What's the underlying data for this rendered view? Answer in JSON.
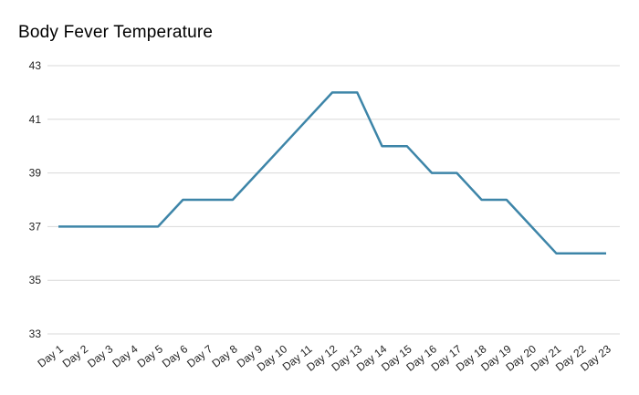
{
  "chart_data": {
    "type": "line",
    "title": "Body Fever Temperature",
    "categories": [
      "Day 1",
      "Day 2",
      "Day 3",
      "Day 4",
      "Day 5",
      "Day 6",
      "Day 7",
      "Day 8",
      "Day 9",
      "Day 10",
      "Day 11",
      "Day 12",
      "Day 13",
      "Day 14",
      "Day 15",
      "Day 16",
      "Day 17",
      "Day 18",
      "Day 19",
      "Day 20",
      "Day 21",
      "Day 22",
      "Day 23"
    ],
    "values": [
      37,
      37,
      37,
      37,
      37,
      38,
      38,
      38,
      39,
      40,
      41,
      42,
      42,
      40,
      40,
      39,
      39,
      38,
      38,
      37,
      36,
      36,
      36
    ],
    "xlabel": "",
    "ylabel": "",
    "ylim": [
      33,
      43
    ],
    "yticks": [
      33,
      35,
      37,
      39,
      41,
      43
    ],
    "grid": true,
    "legend_position": "none",
    "colors": {
      "line": "#3d85a8",
      "title_text": "#757575",
      "axis_label_text": "#222222",
      "gridline": "#d9d9d9",
      "background": "#ffffff"
    }
  }
}
